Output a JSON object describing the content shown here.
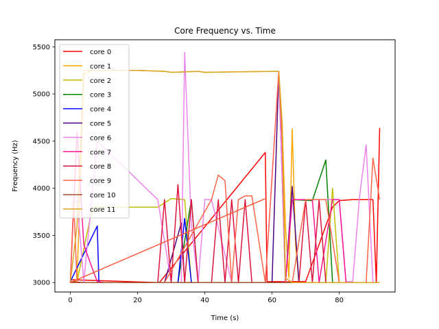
{
  "chart_data": {
    "type": "line",
    "title": "Core Frequency vs. Time",
    "xlabel": "Time (s)",
    "ylabel": "Frequency (Hz)",
    "xlim": [
      -4.6,
      96.6
    ],
    "ylim": [
      2900,
      5575
    ],
    "xticks": [
      0,
      20,
      40,
      60,
      80
    ],
    "yticks": [
      3000,
      3500,
      4000,
      4500,
      5000,
      5500
    ],
    "grid": false,
    "legend_position": "upper-left",
    "series": [
      {
        "name": "core 0",
        "color": "#ff0000",
        "points": [
          [
            0,
            3030
          ],
          [
            26,
            3000
          ],
          [
            26.5,
            3000
          ],
          [
            58,
            4380
          ],
          [
            58.5,
            3010
          ],
          [
            63,
            3010
          ],
          [
            64,
            3010
          ],
          [
            70,
            3010
          ],
          [
            78,
            3800
          ],
          [
            80,
            3870
          ],
          [
            84,
            3880
          ],
          [
            90,
            3880
          ],
          [
            91,
            3000
          ],
          [
            92,
            4640
          ]
        ]
      },
      {
        "name": "core 1",
        "color": "#ffa500",
        "points": [
          [
            0,
            3010
          ],
          [
            2,
            3010
          ],
          [
            4,
            5200
          ],
          [
            6,
            5250
          ],
          [
            10,
            5250
          ],
          [
            20,
            5250
          ],
          [
            28,
            5240
          ],
          [
            30,
            5230
          ],
          [
            38,
            5240
          ],
          [
            40,
            5230
          ],
          [
            60,
            5240
          ],
          [
            62,
            5240
          ],
          [
            63,
            4700
          ],
          [
            64,
            3600
          ],
          [
            65,
            3050
          ],
          [
            66,
            4630
          ],
          [
            67,
            3400
          ],
          [
            68,
            3000
          ],
          [
            80,
            3000
          ],
          [
            92,
            3000
          ]
        ]
      },
      {
        "name": "core 2",
        "color": "#bfbf00",
        "points": [
          [
            0,
            3010
          ],
          [
            2,
            3010
          ],
          [
            6,
            3700
          ],
          [
            7,
            3800
          ],
          [
            8,
            3800
          ],
          [
            26,
            3800
          ],
          [
            30,
            3890
          ],
          [
            34,
            3880
          ],
          [
            36,
            3000
          ],
          [
            60,
            3000
          ],
          [
            62,
            3000
          ],
          [
            66,
            3000
          ],
          [
            76,
            3000
          ],
          [
            78,
            4000
          ],
          [
            80,
            3000
          ],
          [
            92,
            3000
          ]
        ]
      },
      {
        "name": "core 3",
        "color": "#008000",
        "points": [
          [
            0,
            3000
          ],
          [
            32,
            3000
          ],
          [
            36,
            3880
          ],
          [
            38,
            3000
          ],
          [
            62,
            3000
          ],
          [
            64,
            3000
          ],
          [
            66,
            3880
          ],
          [
            72,
            3870
          ],
          [
            76,
            4300
          ],
          [
            78,
            3000
          ],
          [
            92,
            3000
          ]
        ]
      },
      {
        "name": "core 4",
        "color": "#0000ff",
        "points": [
          [
            0,
            3010
          ],
          [
            8,
            3600
          ],
          [
            8.5,
            3000
          ],
          [
            32,
            3000
          ],
          [
            34,
            3680
          ],
          [
            36,
            3000
          ],
          [
            60,
            3000
          ]
        ]
      },
      {
        "name": "core 5",
        "color": "#4b0082",
        "points": [
          [
            0,
            3000
          ],
          [
            28,
            3000
          ],
          [
            33,
            3630
          ],
          [
            34,
            3000
          ],
          [
            36,
            3000
          ],
          [
            60,
            3000
          ],
          [
            62,
            5240
          ],
          [
            64,
            3000
          ],
          [
            66,
            4020
          ],
          [
            68,
            3000
          ],
          [
            92,
            3000
          ]
        ]
      },
      {
        "name": "core 6",
        "color": "#ee82ee",
        "points": [
          [
            0,
            3800
          ],
          [
            2,
            3870
          ],
          [
            4,
            3010
          ],
          [
            8,
            4500
          ],
          [
            26,
            3880
          ],
          [
            30,
            3000
          ],
          [
            33,
            3000
          ],
          [
            34,
            5440
          ],
          [
            36,
            3600
          ],
          [
            38,
            3000
          ],
          [
            40,
            3880
          ],
          [
            42,
            3880
          ],
          [
            48,
            3000
          ],
          [
            58,
            3000
          ],
          [
            62,
            5240
          ],
          [
            64,
            3010
          ],
          [
            66,
            3880
          ],
          [
            68,
            3880
          ],
          [
            72,
            3880
          ],
          [
            80,
            3880
          ],
          [
            82,
            3010
          ],
          [
            84,
            3010
          ],
          [
            86,
            3900
          ],
          [
            88,
            4460
          ],
          [
            90,
            3000
          ],
          [
            92,
            3000
          ]
        ]
      },
      {
        "name": "core 7",
        "color": "#ff1493",
        "points": [
          [
            0,
            3000
          ],
          [
            2,
            4600
          ],
          [
            4,
            3400
          ],
          [
            6,
            3200
          ],
          [
            8,
            3010
          ],
          [
            10,
            3000
          ],
          [
            62,
            3000
          ],
          [
            64,
            3010
          ],
          [
            66,
            3880
          ],
          [
            72,
            3880
          ],
          [
            74,
            3000
          ],
          [
            78,
            3880
          ],
          [
            80,
            3880
          ],
          [
            82,
            3000
          ],
          [
            92,
            3000
          ]
        ]
      },
      {
        "name": "core 8",
        "color": "#dc143c",
        "points": [
          [
            0,
            3010
          ],
          [
            4,
            3000
          ],
          [
            26,
            3000
          ],
          [
            28,
            3880
          ],
          [
            30,
            3000
          ],
          [
            32,
            4040
          ],
          [
            34,
            3000
          ],
          [
            36,
            3880
          ],
          [
            38,
            3000
          ],
          [
            42,
            3000
          ],
          [
            44,
            3880
          ],
          [
            46,
            3000
          ],
          [
            48,
            3880
          ],
          [
            50,
            3000
          ],
          [
            52,
            3880
          ],
          [
            54,
            3000
          ],
          [
            58,
            3000
          ],
          [
            62,
            3000
          ],
          [
            64,
            3000
          ],
          [
            68,
            3000
          ],
          [
            70,
            3880
          ],
          [
            72,
            3000
          ],
          [
            74,
            3880
          ],
          [
            76,
            3000
          ],
          [
            80,
            3000
          ],
          [
            92,
            3000
          ]
        ]
      },
      {
        "name": "core 9",
        "color": "#ff6347",
        "points": [
          [
            0,
            3000
          ],
          [
            1,
            3880
          ],
          [
            2,
            3000
          ],
          [
            4,
            3000
          ],
          [
            26,
            3000
          ],
          [
            28,
            3000
          ],
          [
            42,
            3880
          ],
          [
            44,
            4140
          ],
          [
            46,
            4080
          ],
          [
            48,
            3000
          ],
          [
            50,
            3880
          ],
          [
            52,
            3920
          ],
          [
            54,
            3920
          ],
          [
            58,
            3000
          ],
          [
            62,
            5240
          ],
          [
            63,
            4500
          ],
          [
            64,
            3010
          ],
          [
            66,
            3000
          ],
          [
            70,
            3880
          ],
          [
            76,
            3880
          ],
          [
            80,
            3000
          ],
          [
            88,
            3000
          ],
          [
            90,
            4320
          ],
          [
            92,
            3880
          ]
        ]
      },
      {
        "name": "core 10",
        "color": "#a0522d",
        "points": [
          [
            0,
            3000
          ],
          [
            62,
            3000
          ],
          [
            64,
            3000
          ],
          [
            92,
            3000
          ]
        ]
      },
      {
        "name": "core 11",
        "color": "#daa520",
        "points": [
          [
            0,
            3000
          ],
          [
            2,
            3600
          ],
          [
            4,
            5250
          ],
          [
            10,
            5250
          ],
          [
            20,
            5250
          ],
          [
            28,
            5240
          ],
          [
            30,
            5230
          ],
          [
            38,
            5240
          ],
          [
            40,
            5230
          ],
          [
            62,
            5240
          ],
          [
            63,
            4690
          ],
          [
            64,
            3050
          ],
          [
            66,
            3000
          ],
          [
            92,
            3000
          ]
        ]
      },
      {
        "name": "",
        "color": "#fa5b3d",
        "points": [
          [
            0,
            3000
          ],
          [
            58,
            3890
          ]
        ]
      }
    ]
  }
}
